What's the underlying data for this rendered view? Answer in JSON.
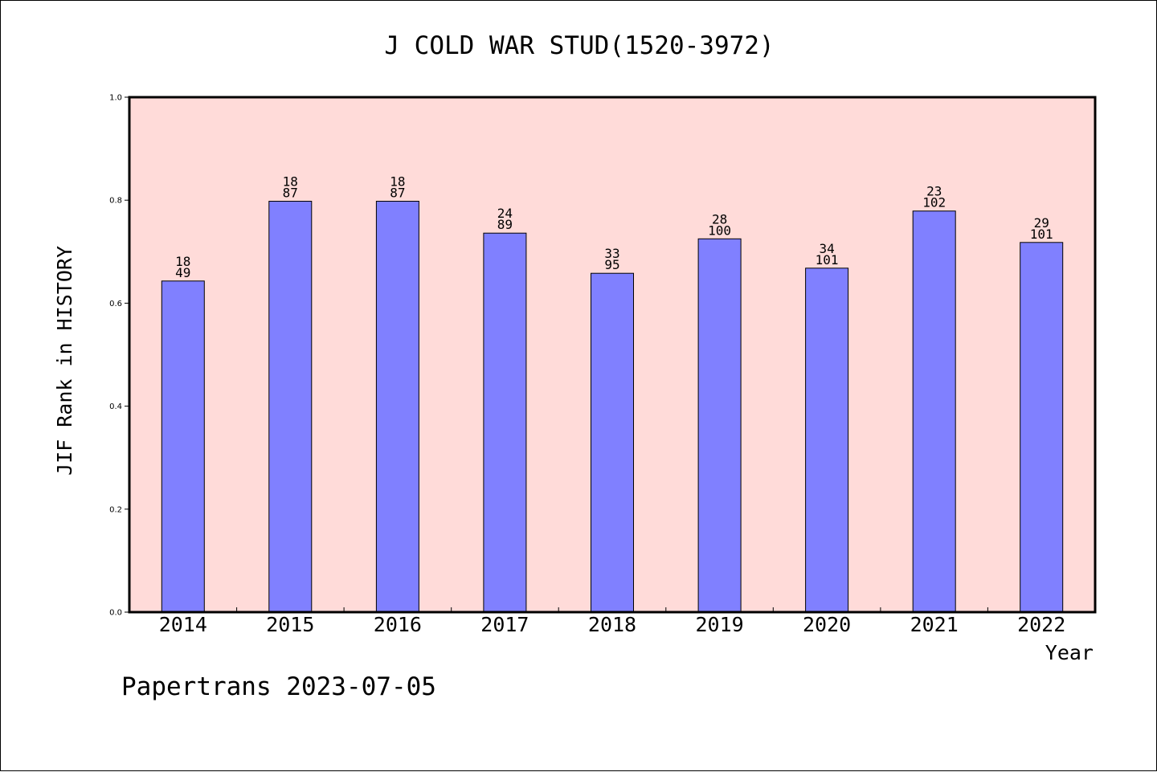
{
  "chart_data": {
    "type": "bar",
    "title": "J COLD WAR STUD(1520-3972)",
    "xlabel": "Year",
    "ylabel": "JIF Rank in HISTORY",
    "ylim": [
      0,
      1.0
    ],
    "yticks": [
      "0.0",
      "0.2",
      "0.4",
      "0.6",
      "0.8",
      "1.0"
    ],
    "categories": [
      "2014",
      "2015",
      "2016",
      "2017",
      "2018",
      "2019",
      "2020",
      "2021",
      "2022"
    ],
    "values": [
      0.643,
      0.798,
      0.798,
      0.736,
      0.658,
      0.725,
      0.668,
      0.779,
      0.718
    ],
    "rank": [
      "18",
      "18",
      "18",
      "24",
      "33",
      "28",
      "34",
      "23",
      "29"
    ],
    "total": [
      "49",
      "87",
      "87",
      "89",
      "95",
      "100",
      "101",
      "102",
      "101"
    ],
    "colors": {
      "bar": "#8080ff",
      "plot_background": "#ffdbd9"
    },
    "grid": false,
    "legend": "none"
  },
  "footer": "Papertrans 2023-07-05"
}
